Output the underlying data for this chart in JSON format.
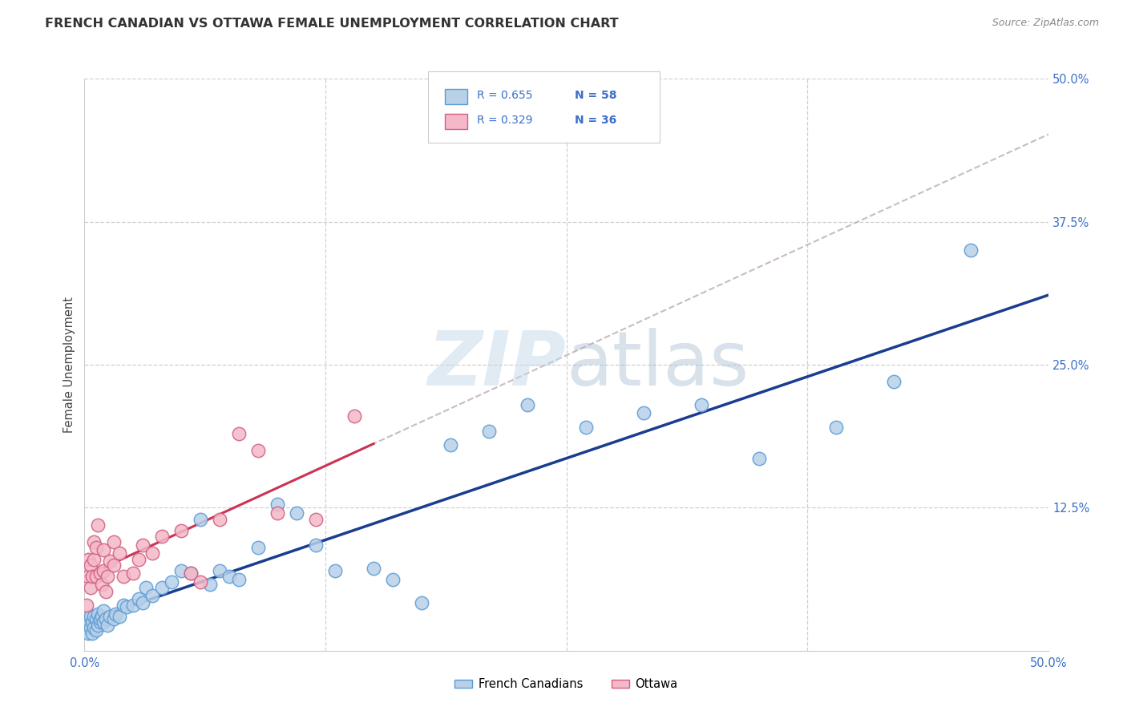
{
  "title": "FRENCH CANADIAN VS OTTAWA FEMALE UNEMPLOYMENT CORRELATION CHART",
  "source": "Source: ZipAtlas.com",
  "ylabel": "Female Unemployment",
  "xlim": [
    0.0,
    0.5
  ],
  "ylim": [
    0.0,
    0.5
  ],
  "blue_fill": "#b8d0e8",
  "blue_edge": "#5b9bd5",
  "pink_fill": "#f4b8c8",
  "pink_edge": "#d06080",
  "line_blue": "#1a3d8f",
  "line_pink": "#cc3355",
  "line_gray_dash": "#c0b0b8",
  "text_blue": "#3a6fcc",
  "text_dark": "#333333",
  "watermark_color": "#c5d8ea",
  "R1": "0.655",
  "N1": "58",
  "R2": "0.329",
  "N2": "36",
  "blue_x": [
    0.001,
    0.002,
    0.002,
    0.003,
    0.003,
    0.004,
    0.004,
    0.005,
    0.005,
    0.006,
    0.006,
    0.007,
    0.007,
    0.008,
    0.008,
    0.009,
    0.01,
    0.01,
    0.011,
    0.012,
    0.013,
    0.015,
    0.016,
    0.018,
    0.02,
    0.022,
    0.025,
    0.028,
    0.03,
    0.032,
    0.035,
    0.04,
    0.045,
    0.05,
    0.055,
    0.06,
    0.065,
    0.07,
    0.075,
    0.08,
    0.09,
    0.1,
    0.11,
    0.12,
    0.13,
    0.15,
    0.16,
    0.175,
    0.19,
    0.21,
    0.23,
    0.26,
    0.29,
    0.32,
    0.35,
    0.39,
    0.42,
    0.46
  ],
  "blue_y": [
    0.02,
    0.015,
    0.025,
    0.02,
    0.03,
    0.015,
    0.025,
    0.02,
    0.03,
    0.018,
    0.028,
    0.022,
    0.032,
    0.025,
    0.028,
    0.03,
    0.025,
    0.035,
    0.028,
    0.022,
    0.03,
    0.028,
    0.032,
    0.03,
    0.04,
    0.038,
    0.04,
    0.045,
    0.042,
    0.055,
    0.048,
    0.055,
    0.06,
    0.07,
    0.068,
    0.115,
    0.058,
    0.07,
    0.065,
    0.062,
    0.09,
    0.128,
    0.12,
    0.092,
    0.07,
    0.072,
    0.062,
    0.042,
    0.18,
    0.192,
    0.215,
    0.195,
    0.208,
    0.215,
    0.168,
    0.195,
    0.235,
    0.35
  ],
  "pink_x": [
    0.001,
    0.002,
    0.002,
    0.003,
    0.003,
    0.004,
    0.005,
    0.005,
    0.006,
    0.006,
    0.007,
    0.008,
    0.009,
    0.01,
    0.01,
    0.011,
    0.012,
    0.013,
    0.015,
    0.015,
    0.018,
    0.02,
    0.025,
    0.028,
    0.03,
    0.035,
    0.04,
    0.05,
    0.055,
    0.06,
    0.07,
    0.08,
    0.09,
    0.1,
    0.12,
    0.14
  ],
  "pink_y": [
    0.04,
    0.065,
    0.08,
    0.055,
    0.075,
    0.065,
    0.08,
    0.095,
    0.065,
    0.09,
    0.11,
    0.068,
    0.058,
    0.07,
    0.088,
    0.052,
    0.065,
    0.078,
    0.095,
    0.075,
    0.085,
    0.065,
    0.068,
    0.08,
    0.092,
    0.085,
    0.1,
    0.105,
    0.068,
    0.06,
    0.115,
    0.19,
    0.175,
    0.12,
    0.115,
    0.205
  ]
}
